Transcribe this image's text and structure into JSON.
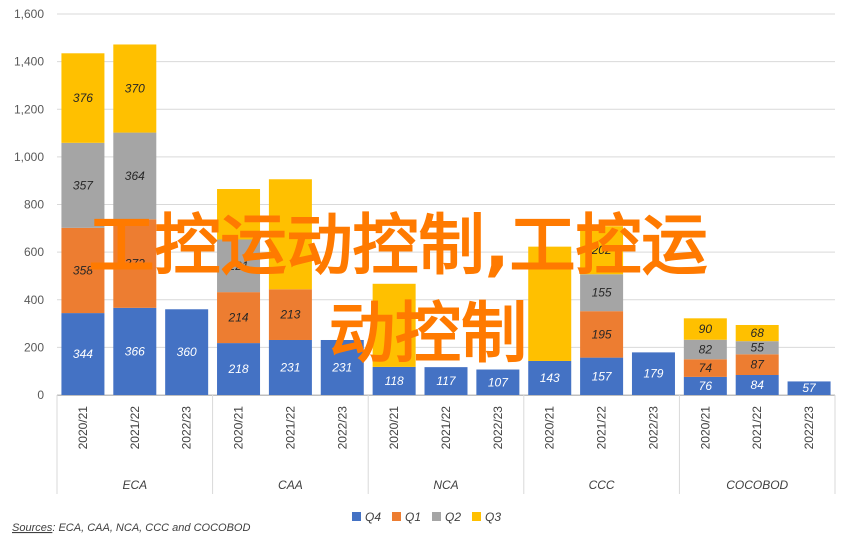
{
  "chart_data": {
    "type": "bar",
    "stacked": true,
    "ylim": [
      0,
      1600
    ],
    "yticks": [
      "0",
      "200",
      "400",
      "600",
      "800",
      "1,000",
      "1,200",
      "1,400",
      "1,600"
    ],
    "grid": true,
    "legend_position": "bottom",
    "categories": [
      "2020/21",
      "2021/22",
      "2022/23",
      "2020/21",
      "2021/22",
      "2022/23",
      "2020/21",
      "2021/22",
      "2022/23",
      "2020/21",
      "2021/22",
      "2022/23",
      "2020/21",
      "2021/22",
      "2022/23"
    ],
    "groups": [
      "ECA",
      "CAA",
      "NCA",
      "CCC",
      "COCOBOD"
    ],
    "series": [
      {
        "name": "Q4",
        "color": "#4472c4",
        "label_color": "#ffffff",
        "values": [
          344,
          366,
          360,
          218,
          231,
          231,
          118,
          117,
          107,
          143,
          157,
          179,
          76,
          84,
          57
        ]
      },
      {
        "name": "Q1",
        "color": "#ed7d31",
        "label_color": "#262626",
        "values": [
          358,
          372,
          null,
          214,
          213,
          null,
          null,
          null,
          null,
          null,
          195,
          null,
          74,
          87,
          null
        ]
      },
      {
        "name": "Q2",
        "color": "#a5a5a5",
        "label_color": "#262626",
        "values": [
          357,
          364,
          null,
          221,
          null,
          null,
          null,
          null,
          null,
          null,
          155,
          null,
          82,
          55,
          null
        ]
      },
      {
        "name": "Q3",
        "color": "#ffc000",
        "label_color": "#262626",
        "values": [
          376,
          370,
          null,
          null,
          null,
          null,
          null,
          null,
          null,
          null,
          202,
          null,
          90,
          68,
          null
        ]
      }
    ],
    "hidden_totals": [
      null,
      null,
      null,
      865,
      906,
      null,
      467,
      null,
      null,
      623,
      null,
      null,
      null,
      null,
      null
    ]
  },
  "source": {
    "label": "Sources",
    "text": ": ECA, CAA, NCA, CCC and COCOBOD"
  },
  "watermark": {
    "line1": "工控运动控制,工控运",
    "line2": "动控制"
  }
}
